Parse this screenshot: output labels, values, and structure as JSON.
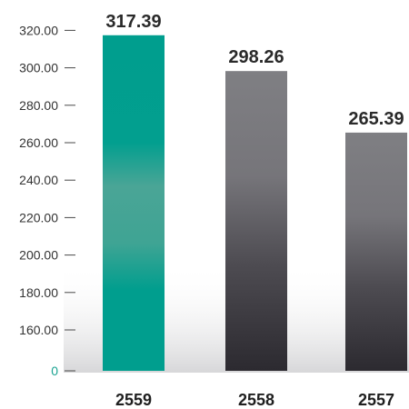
{
  "chart_data": {
    "type": "bar",
    "categories": [
      "2559",
      "2558",
      "2557"
    ],
    "values": [
      317.39,
      298.26,
      265.39
    ],
    "value_labels": [
      "317.39",
      "298.26",
      "265.39"
    ],
    "y_ticks": [
      {
        "value": 0,
        "label": "0"
      },
      {
        "value": 160,
        "label": "160.00"
      },
      {
        "value": 180,
        "label": "180.00"
      },
      {
        "value": 200,
        "label": "200.00"
      },
      {
        "value": 220,
        "label": "220.00"
      },
      {
        "value": 240,
        "label": "240.00"
      },
      {
        "value": 260,
        "label": "260.00"
      },
      {
        "value": 280,
        "label": "280.00"
      },
      {
        "value": 300,
        "label": "300.00"
      },
      {
        "value": 320,
        "label": "320.00"
      }
    ],
    "axis_break": "0 to 160",
    "ylim": [
      160,
      320
    ],
    "grid": false,
    "legend": "none",
    "colors": {
      "highlight_bar": "#009e8e",
      "bar_top": "#7f7f83",
      "bar_bottom": "#2c2a30",
      "zero_label": "#1aa391",
      "tick_label": "#333333",
      "value_label": "#2a2a2a"
    }
  }
}
